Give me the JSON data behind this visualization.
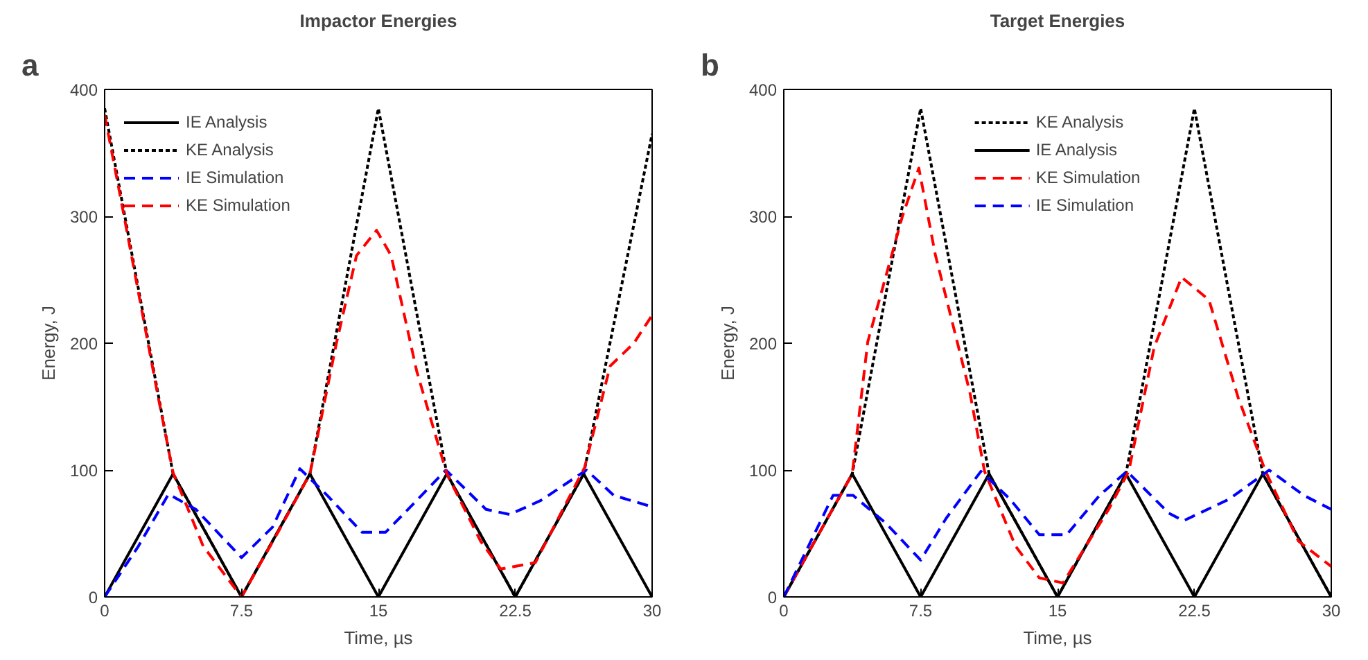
{
  "chart_data": [
    {
      "type": "line",
      "title": "Impactor Energies",
      "xlabel": "Time, µs",
      "ylabel": "Energy, J",
      "annotations": [
        "a"
      ],
      "xlim": [
        0,
        30
      ],
      "ylim": [
        0,
        400
      ],
      "xticks": [
        0,
        7.5,
        15,
        22.5,
        30
      ],
      "yticks": [
        0,
        100,
        200,
        300,
        400
      ],
      "grid": false,
      "legend": "top left",
      "series": [
        {
          "name": "IE Analysis",
          "color": "#000000",
          "line_style": "solid",
          "x": [
            0,
            3.75,
            7.5,
            11.25,
            15,
            18.75,
            22.5,
            26.25,
            30
          ],
          "values": [
            0,
            97,
            0,
            97,
            0,
            97,
            0,
            97,
            0
          ]
        },
        {
          "name": "KE Analysis",
          "color": "#000000",
          "line_style": "dotted",
          "x": [
            0,
            3.75,
            7.5,
            11.25,
            15,
            18.75,
            22.5,
            26.25,
            30
          ],
          "values": [
            385,
            97,
            0,
            97,
            385,
            97,
            0,
            97,
            365
          ]
        },
        {
          "name": "IE Simulation",
          "color": "#0000ff",
          "line_style": "dashed",
          "x": [
            0,
            1.85,
            3.5,
            5.0,
            7.5,
            9.2,
            10.7,
            12.2,
            14.1,
            15.4,
            17.1,
            18.7,
            20.9,
            22.2,
            23.9,
            26.4,
            27.9,
            30
          ],
          "values": [
            0,
            40,
            81,
            69,
            31,
            55,
            101,
            80,
            51,
            51,
            76,
            100,
            69,
            65,
            76,
            100,
            80,
            71
          ]
        },
        {
          "name": "KE Simulation",
          "color": "#ff0000",
          "line_style": "dashed",
          "x": [
            0,
            1.0,
            2.9,
            3.75,
            5.4,
            7.5,
            9.5,
            11.25,
            12.7,
            13.8,
            14.9,
            15.7,
            17.1,
            18.75,
            20.6,
            21.7,
            23.6,
            26.3,
            27.7,
            29,
            30
          ],
          "values": [
            380,
            305,
            160,
            98,
            40,
            0,
            51,
            97,
            200,
            269,
            289,
            269,
            178,
            97,
            44,
            22,
            27,
            102,
            182,
            200,
            222
          ]
        }
      ]
    },
    {
      "type": "line",
      "title": "Target Energies",
      "xlabel": "Time, µs",
      "ylabel": "Energy, J",
      "annotations": [
        "b"
      ],
      "xlim": [
        0,
        30
      ],
      "ylim": [
        0,
        400
      ],
      "xticks": [
        0,
        7.5,
        15,
        22.5,
        30
      ],
      "yticks": [
        0,
        100,
        200,
        300,
        400
      ],
      "grid": false,
      "legend": "top",
      "series": [
        {
          "name": "KE Analysis",
          "color": "#000000",
          "line_style": "dotted",
          "x": [
            0,
            3.75,
            7.5,
            11.25,
            15,
            18.75,
            22.5,
            26.25,
            30
          ],
          "values": [
            0,
            97,
            385,
            97,
            0,
            97,
            385,
            97,
            0
          ]
        },
        {
          "name": "IE Analysis",
          "color": "#000000",
          "line_style": "solid",
          "x": [
            0,
            3.75,
            7.5,
            11.25,
            15,
            18.75,
            22.5,
            26.25,
            30
          ],
          "values": [
            0,
            97,
            0,
            97,
            0,
            97,
            0,
            97,
            0
          ]
        },
        {
          "name": "KE Simulation",
          "color": "#ff0000",
          "line_style": "dashed",
          "x": [
            0,
            3.75,
            4.6,
            6.5,
            7.4,
            8.3,
            10.2,
            11.0,
            12.7,
            14.0,
            15.3,
            17.8,
            18.9,
            20.3,
            21.8,
            23.3,
            24.9,
            26.4,
            28.2,
            30
          ],
          "values": [
            0,
            97,
            201,
            300,
            338,
            270,
            161,
            99,
            40,
            15,
            11,
            69,
            99,
            197,
            252,
            234,
            157,
            99,
            44,
            24
          ]
        },
        {
          "name": "IE Simulation",
          "color": "#0000ff",
          "line_style": "dashed",
          "x": [
            0,
            2.7,
            3.8,
            5.6,
            7.5,
            8.9,
            10.8,
            12.4,
            14.0,
            15.5,
            17.3,
            18.8,
            21.1,
            21.9,
            24.4,
            26.6,
            28.5,
            30
          ],
          "values": [
            0,
            80,
            80,
            58,
            29,
            62,
            99,
            77,
            49,
            49,
            80,
            99,
            66,
            60,
            77,
            100,
            80,
            69
          ]
        }
      ]
    }
  ]
}
